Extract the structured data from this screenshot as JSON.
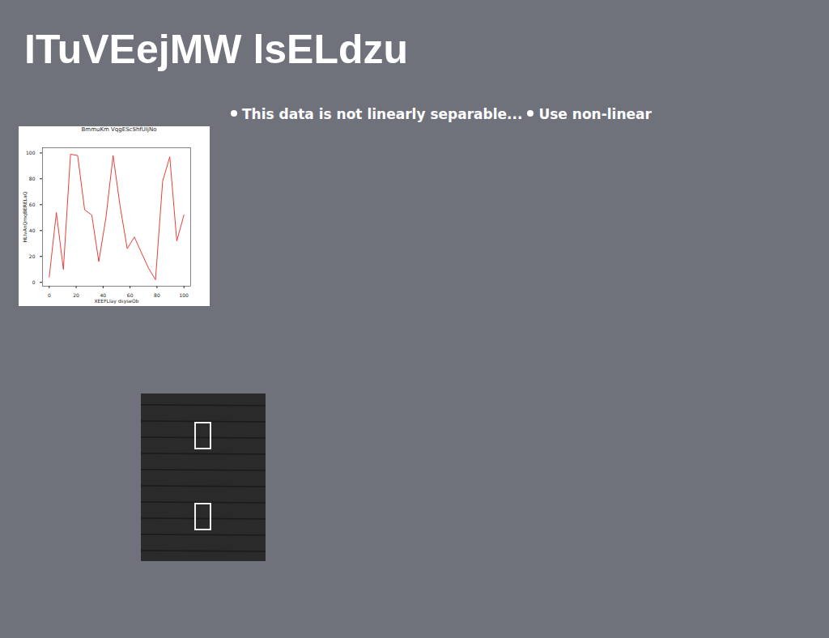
{
  "title": "ITuVEejMW lsELdzu",
  "bullets": [
    "This data is not linearly separable...",
    "Use non-linear"
  ],
  "chart_data": {
    "type": "line",
    "title": "BmmuKm VqgEScShfUIjNo",
    "x_label": "XEEFLlay dsyseOb",
    "y_label": "HLIvAnQmqBERELaQ",
    "x": [
      0,
      5.3,
      10.5,
      15.8,
      21.1,
      26.3,
      31.6,
      36.8,
      42.1,
      47.4,
      52.6,
      57.9,
      63.2,
      68.4,
      73.7,
      78.9,
      84.2,
      89.5,
      94.7,
      100
    ],
    "values": [
      4,
      54,
      10,
      99,
      98,
      56,
      52,
      16,
      50,
      98,
      59,
      26,
      35,
      23,
      11,
      2,
      78,
      97,
      32,
      52
    ],
    "color": "#e8403a",
    "xlim": [
      -5,
      105
    ],
    "ylim": [
      -3,
      104
    ],
    "xticks": [
      0,
      20,
      40,
      60,
      80,
      100
    ],
    "yticks": [
      0,
      20,
      40,
      60,
      80,
      100
    ],
    "grid": false
  }
}
